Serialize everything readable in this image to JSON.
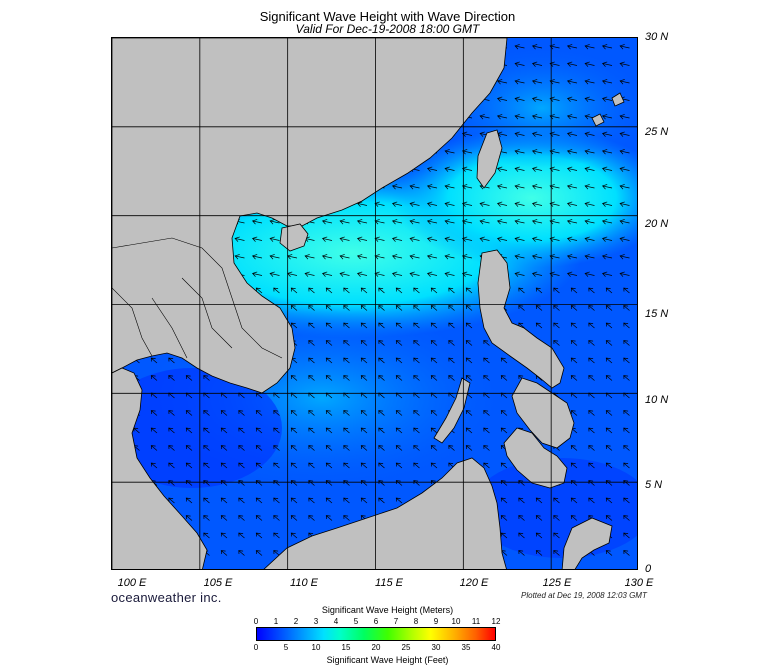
{
  "title": "Significant Wave Height with Wave Direction",
  "subtitle": "Valid For Dec-19-2008 18:00 GMT",
  "lat_labels": [
    "30 N",
    "25 N",
    "20 N",
    "15 N",
    "10 N",
    "5 N",
    "0"
  ],
  "lon_labels": [
    "100 E",
    "105 E",
    "110 E",
    "115 E",
    "120 E",
    "125 E",
    "130 E"
  ],
  "brand": "oceanweather inc.",
  "plotted": "Plotted at Dec 19, 2008 12:03 GMT",
  "colorbar": {
    "title_meters": "Significant Wave Height (Meters)",
    "title_feet": "Significant Wave Height (Feet)",
    "meter_ticks": [
      "0",
      "1",
      "2",
      "3",
      "4",
      "5",
      "6",
      "7",
      "8",
      "9",
      "10",
      "11",
      "12"
    ],
    "feet_ticks": [
      "0",
      "5",
      "10",
      "15",
      "20",
      "25",
      "30",
      "35",
      "40"
    ]
  },
  "colors": {
    "land": "#c0c0c0",
    "deep_blue": "#0000ff",
    "mid_blue": "#0060ff",
    "cyan": "#00e8ff",
    "aqua": "#30ffe0"
  }
}
